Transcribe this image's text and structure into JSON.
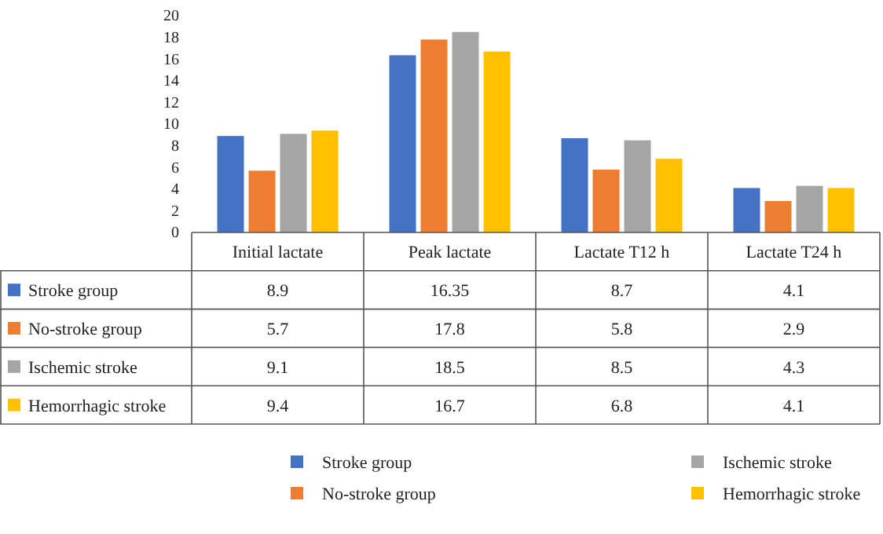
{
  "chart_data": {
    "type": "bar",
    "categories": [
      "Initial lactate",
      "Peak lactate",
      "Lactate T12 h",
      "Lactate T24 h"
    ],
    "series": [
      {
        "name": "Stroke group",
        "color": "#4472c4",
        "values": [
          8.9,
          16.35,
          8.7,
          4.1
        ]
      },
      {
        "name": "No-stroke group",
        "color": "#ed7d31",
        "values": [
          5.7,
          17.8,
          5.8,
          2.9
        ]
      },
      {
        "name": "Ischemic stroke",
        "color": "#a5a5a5",
        "values": [
          9.1,
          18.5,
          8.5,
          4.3
        ]
      },
      {
        "name": "Hemorrhagic stroke",
        "color": "#ffc000",
        "values": [
          9.4,
          16.7,
          6.8,
          4.1
        ]
      }
    ],
    "ylim": [
      0,
      20
    ],
    "yticks": [
      0,
      2,
      4,
      6,
      8,
      10,
      12,
      14,
      16,
      18,
      20
    ],
    "grid": false,
    "legend": "bottom",
    "data_labels": true
  }
}
